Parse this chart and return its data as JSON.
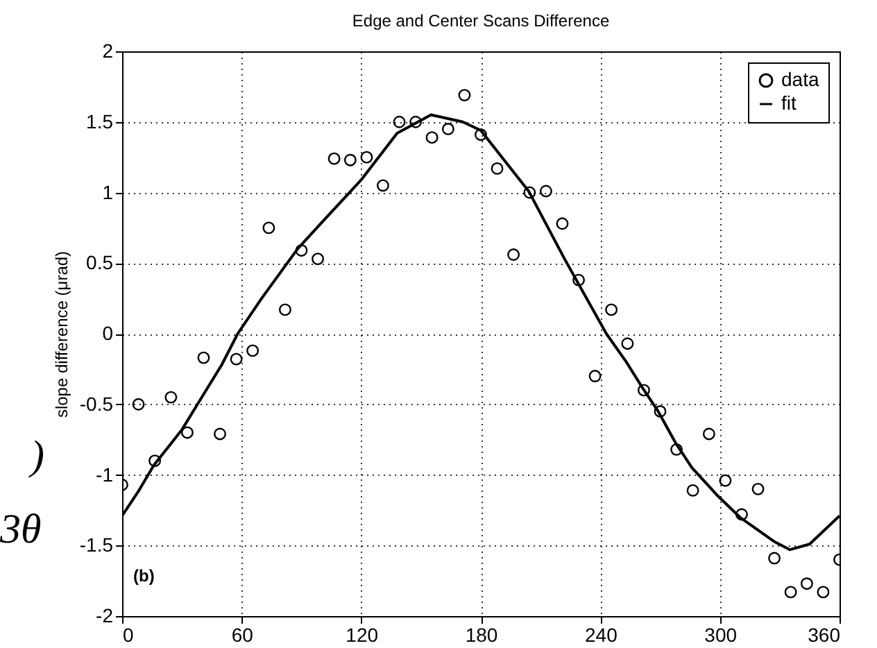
{
  "chart_data": {
    "type": "scatter",
    "title": "Edge and Center Scans Difference",
    "ylabel": "slope difference (μrad)",
    "annotations": [
      "(b)",
      ")",
      "3θ"
    ],
    "series": [
      {
        "name": "data",
        "type": "scatter",
        "color": "#000000",
        "marker": "circle",
        "x": [
          0,
          8.2,
          16.4,
          24.5,
          32.7,
          40.9,
          49.1,
          57.3,
          65.5,
          73.6,
          81.8,
          90,
          98.2,
          106.4,
          114.5,
          122.7,
          130.9,
          139.1,
          147.3,
          155.5,
          163.6,
          171.8,
          180,
          188.2,
          196.4,
          204.5,
          212.7,
          220.9,
          229.1,
          237.3,
          245.5,
          253.6,
          261.8,
          270,
          278.2,
          286.4,
          294.5,
          302.7,
          310.9,
          319.1,
          327.3,
          335.5,
          343.6,
          351.8,
          360
        ],
        "values": [
          -1.07,
          -0.5,
          -0.9,
          -0.45,
          -0.7,
          -0.17,
          -0.71,
          -0.18,
          -0.12,
          0.75,
          0.17,
          0.59,
          0.53,
          1.24,
          1.23,
          1.25,
          1.05,
          1.5,
          1.5,
          1.39,
          1.45,
          1.69,
          1.41,
          1.17,
          0.56,
          1.0,
          1.01,
          0.78,
          0.38,
          -0.3,
          0.17,
          -0.07,
          -0.4,
          -0.55,
          -0.82,
          -1.11,
          -0.71,
          -1.04,
          -1.28,
          -1.1,
          -1.59,
          -1.83,
          -1.77,
          -1.83,
          -1.6
        ]
      },
      {
        "name": "fit",
        "type": "line",
        "color": "#000000",
        "line_style": "solid",
        "x": [
          0,
          8,
          16,
          30,
          40,
          50,
          58,
          70,
          88,
          101,
          120,
          138,
          155,
          171,
          180,
          190,
          204,
          222,
          243,
          253,
          261,
          269,
          278,
          286,
          299,
          310,
          327,
          335,
          345,
          360
        ],
        "values": [
          -1.29,
          -1.12,
          -0.93,
          -0.68,
          -0.45,
          -0.22,
          0,
          0.25,
          0.6,
          0.8,
          1.09,
          1.42,
          1.55,
          1.5,
          1.44,
          1.26,
          1.01,
          0.53,
          0,
          -0.2,
          -0.38,
          -0.55,
          -0.78,
          -0.95,
          -1.15,
          -1.3,
          -1.47,
          -1.53,
          -1.49,
          -1.29
        ]
      }
    ],
    "xlim": [
      0,
      360
    ],
    "xticks": [
      0,
      60,
      120,
      180,
      240,
      300,
      360
    ],
    "ylim": [
      -2,
      2
    ],
    "yticks": [
      -2,
      -1.5,
      -1,
      -0.5,
      0,
      0.5,
      1,
      1.5,
      2
    ],
    "grid": true,
    "legend": "top right"
  }
}
